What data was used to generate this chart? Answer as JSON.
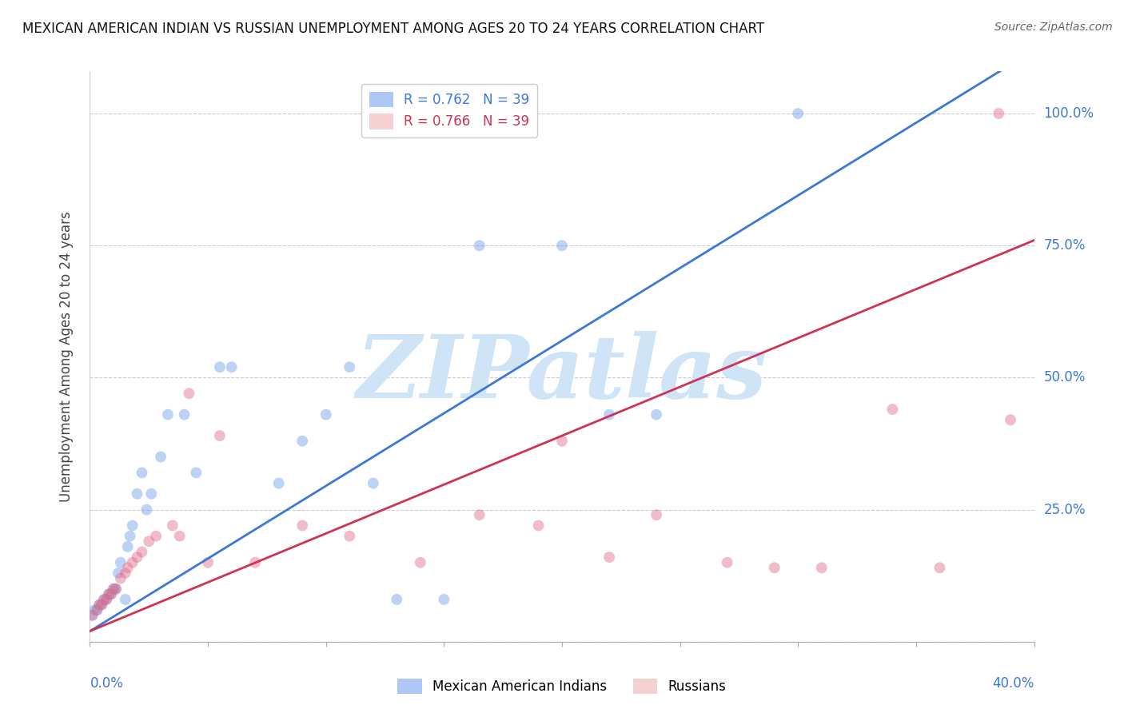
{
  "title": "MEXICAN AMERICAN INDIAN VS RUSSIAN UNEMPLOYMENT AMONG AGES 20 TO 24 YEARS CORRELATION CHART",
  "source": "Source: ZipAtlas.com",
  "ylabel": "Unemployment Among Ages 20 to 24 years",
  "y_ticks_right": [
    0.0,
    0.25,
    0.5,
    0.75,
    1.0
  ],
  "y_tick_labels_right": [
    "",
    "25.0%",
    "50.0%",
    "75.0%",
    "100.0%"
  ],
  "xlim": [
    0.0,
    0.4
  ],
  "ylim": [
    0.0,
    1.08
  ],
  "legend1_label": "R = 0.762   N = 39",
  "legend2_label": "R = 0.766   N = 39",
  "legend_blue_color": "#a4c2f4",
  "legend_pink_color": "#f4cccc",
  "blue_color": "#6d9eeb",
  "pink_color": "#e06c8a",
  "line_blue_color": "#3c78d8",
  "line_pink_color": "#cc3355",
  "watermark": "ZIPatlas",
  "watermark_color": "#d0e4f7",
  "blue_scatter_x": [
    0.001,
    0.002,
    0.003,
    0.004,
    0.005,
    0.006,
    0.007,
    0.008,
    0.009,
    0.01,
    0.011,
    0.012,
    0.013,
    0.015,
    0.016,
    0.017,
    0.018,
    0.02,
    0.022,
    0.024,
    0.026,
    0.03,
    0.033,
    0.04,
    0.045,
    0.055,
    0.06,
    0.08,
    0.09,
    0.1,
    0.11,
    0.12,
    0.13,
    0.15,
    0.165,
    0.2,
    0.22,
    0.24,
    0.3
  ],
  "blue_scatter_y": [
    0.05,
    0.06,
    0.06,
    0.07,
    0.07,
    0.08,
    0.08,
    0.09,
    0.09,
    0.1,
    0.1,
    0.13,
    0.15,
    0.08,
    0.18,
    0.2,
    0.22,
    0.28,
    0.32,
    0.25,
    0.28,
    0.35,
    0.43,
    0.43,
    0.32,
    0.52,
    0.52,
    0.3,
    0.38,
    0.43,
    0.52,
    0.3,
    0.08,
    0.08,
    0.75,
    0.75,
    0.43,
    0.43,
    1.0
  ],
  "pink_scatter_x": [
    0.001,
    0.003,
    0.004,
    0.005,
    0.006,
    0.007,
    0.008,
    0.009,
    0.01,
    0.011,
    0.013,
    0.015,
    0.016,
    0.018,
    0.02,
    0.022,
    0.025,
    0.028,
    0.035,
    0.038,
    0.042,
    0.05,
    0.055,
    0.07,
    0.09,
    0.11,
    0.14,
    0.165,
    0.19,
    0.2,
    0.22,
    0.24,
    0.27,
    0.29,
    0.31,
    0.34,
    0.36,
    0.385,
    0.39
  ],
  "pink_scatter_y": [
    0.05,
    0.06,
    0.07,
    0.07,
    0.08,
    0.08,
    0.09,
    0.09,
    0.1,
    0.1,
    0.12,
    0.13,
    0.14,
    0.15,
    0.16,
    0.17,
    0.19,
    0.2,
    0.22,
    0.2,
    0.47,
    0.15,
    0.39,
    0.15,
    0.22,
    0.2,
    0.15,
    0.24,
    0.22,
    0.38,
    0.16,
    0.24,
    0.15,
    0.14,
    0.14,
    0.44,
    0.14,
    1.0,
    0.42
  ],
  "blue_line_x": [
    0.0,
    0.4
  ],
  "blue_line_y": [
    0.02,
    1.12
  ],
  "pink_line_x": [
    0.0,
    0.4
  ],
  "pink_line_y": [
    0.02,
    0.76
  ],
  "grid_color": "#cccccc",
  "bg_color": "#ffffff",
  "scatter_size": 100,
  "scatter_alpha": 0.45
}
